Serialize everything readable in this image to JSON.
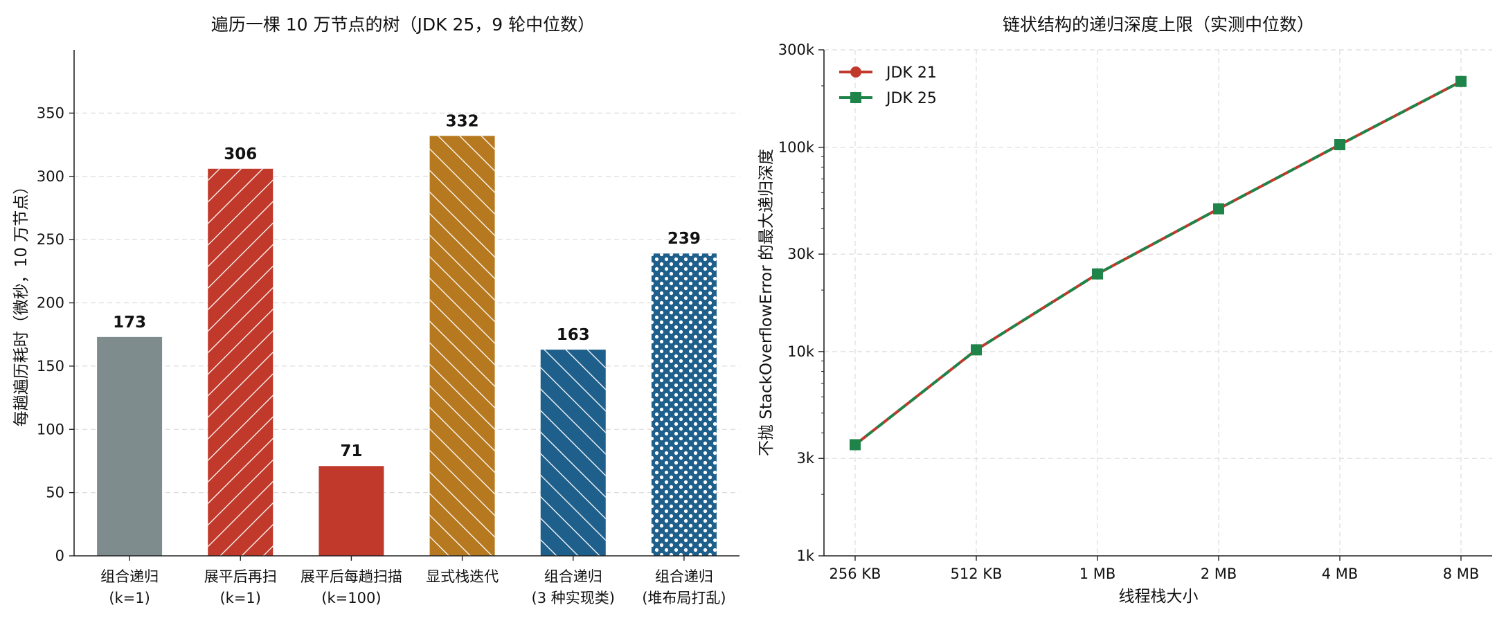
{
  "chart_data": [
    {
      "type": "bar",
      "title": "遍历一棵 10 万节点的树（JDK 25，9 轮中位数）",
      "xlabel": "",
      "ylabel": "每趟遍历耗时（微秒，10 万节点）",
      "ylim": [
        0,
        400
      ],
      "yticks": [
        0,
        50,
        100,
        150,
        200,
        250,
        300,
        350
      ],
      "grid": "y",
      "categories": [
        [
          "组合递归",
          "(k=1)"
        ],
        [
          "展平后再扫",
          "(k=1)"
        ],
        [
          "展平后每趟扫描",
          "(k=100)"
        ],
        [
          "显式栈迭代"
        ],
        [
          "组合递归",
          "(3 种实现类)"
        ],
        [
          "组合递归",
          "(堆布局打乱)"
        ]
      ],
      "values": [
        173,
        306,
        71,
        332,
        163,
        239
      ],
      "value_labels": [
        "173",
        "306",
        "71",
        "332",
        "163",
        "239"
      ],
      "colors": [
        "#7f8c8d",
        "#c0392b",
        "#c0392b",
        "#b7791f",
        "#1f5f8b",
        "#1f5f8b"
      ],
      "patterns": [
        "none",
        "diag-up",
        "none",
        "diag-down",
        "diag-down",
        "dots"
      ]
    },
    {
      "type": "line",
      "title": "链状结构的递归深度上限（实测中位数）",
      "xlabel": "线程栈大小",
      "ylabel": "不抛 StackOverflowError 的最大递归深度",
      "yscale": "log",
      "ylim": [
        1000,
        300000
      ],
      "yticks": [
        "1k",
        "3k",
        "10k",
        "30k",
        "100k",
        "300k"
      ],
      "ytick_values": [
        1000,
        3000,
        10000,
        30000,
        100000,
        300000
      ],
      "x": [
        "256 KB",
        "512 KB",
        "1 MB",
        "2 MB",
        "4 MB",
        "8 MB"
      ],
      "grid": "both",
      "legend": "top-left",
      "series": [
        {
          "name": "JDK 21",
          "values": [
            3500,
            10200,
            24000,
            50000,
            103000,
            210000
          ],
          "color": "#c0392b",
          "marker": "circle"
        },
        {
          "name": "JDK 25",
          "values": [
            3500,
            10200,
            24000,
            50000,
            103000,
            210000
          ],
          "color": "#1e8449",
          "marker": "square"
        }
      ]
    }
  ]
}
